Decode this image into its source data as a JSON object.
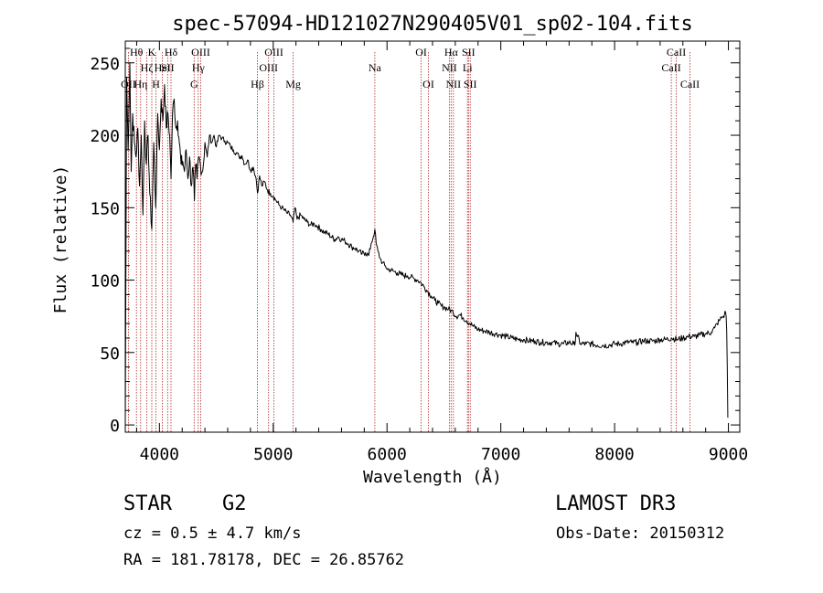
{
  "chart_data": {
    "type": "line",
    "title": "spec-57094-HD121027N290405V01_sp02-104.fits",
    "xlabel": "Wavelength (Å)",
    "ylabel": "Flux (relative)",
    "xlim": [
      3700,
      9100
    ],
    "ylim": [
      -5,
      265
    ],
    "x_ticks": [
      4000,
      5000,
      6000,
      7000,
      8000,
      9000
    ],
    "y_ticks": [
      0,
      50,
      100,
      150,
      200,
      250
    ],
    "x_tick_labels": [
      "4000",
      "5000",
      "6000",
      "7000",
      "8000",
      "9000"
    ],
    "y_tick_labels": [
      "0",
      "50",
      "100",
      "150",
      "200",
      "250"
    ],
    "series": [
      {
        "name": "flux",
        "color": "#000000",
        "x": [
          3700,
          3712,
          3725,
          3740,
          3752,
          3765,
          3780,
          3795,
          3810,
          3825,
          3840,
          3855,
          3870,
          3885,
          3900,
          3915,
          3933,
          3950,
          3968,
          3985,
          4000,
          4015,
          4030,
          4045,
          4060,
          4075,
          4090,
          4102,
          4115,
          4130,
          4145,
          4160,
          4175,
          4190,
          4205,
          4220,
          4235,
          4250,
          4265,
          4280,
          4295,
          4308,
          4318,
          4330,
          4345,
          4360,
          4380,
          4400,
          4420,
          4440,
          4460,
          4480,
          4500,
          4525,
          4550,
          4575,
          4600,
          4625,
          4650,
          4675,
          4700,
          4725,
          4750,
          4775,
          4800,
          4825,
          4850,
          4862,
          4880,
          4900,
          4925,
          4950,
          4975,
          5000,
          5025,
          5050,
          5075,
          5100,
          5125,
          5150,
          5175,
          5190,
          5210,
          5240,
          5270,
          5300,
          5330,
          5360,
          5390,
          5420,
          5450,
          5480,
          5510,
          5540,
          5570,
          5600,
          5630,
          5660,
          5690,
          5720,
          5750,
          5780,
          5810,
          5840,
          5860,
          5880,
          5893,
          5905,
          5920,
          5940,
          5960,
          5980,
          6000,
          6030,
          6060,
          6090,
          6120,
          6150,
          6180,
          6210,
          6240,
          6270,
          6300,
          6330,
          6360,
          6390,
          6420,
          6450,
          6480,
          6510,
          6540,
          6563,
          6580,
          6610,
          6640,
          6670,
          6700,
          6730,
          6760,
          6800,
          6850,
          6900,
          6950,
          7000,
          7050,
          7100,
          7150,
          7200,
          7250,
          7300,
          7350,
          7400,
          7450,
          7500,
          7550,
          7600,
          7640,
          7650,
          7660,
          7700,
          7750,
          7800,
          7850,
          7900,
          7950,
          8000,
          8050,
          8100,
          8150,
          8200,
          8250,
          8300,
          8350,
          8400,
          8450,
          8500,
          8550,
          8600,
          8650,
          8700,
          8750,
          8800,
          8850,
          8880,
          8900,
          8920,
          8940,
          8955,
          8965,
          8975,
          8980,
          8985,
          8990,
          8995
        ],
        "values": [
          0,
          240,
          190,
          250,
          175,
          215,
          195,
          185,
          205,
          165,
          200,
          145,
          210,
          180,
          200,
          160,
          135,
          195,
          150,
          215,
          190,
          225,
          210,
          235,
          205,
          215,
          200,
          170,
          215,
          225,
          205,
          210,
          195,
          180,
          182,
          175,
          190,
          170,
          185,
          165,
          178,
          155,
          180,
          170,
          185,
          180,
          175,
          195,
          185,
          200,
          195,
          200,
          192,
          200,
          198,
          196,
          195,
          192,
          190,
          188,
          185,
          186,
          180,
          183,
          176,
          178,
          170,
          160,
          172,
          165,
          168,
          162,
          160,
          158,
          155,
          152,
          150,
          148,
          146,
          145,
          140,
          150,
          142,
          145,
          142,
          140,
          138,
          139,
          137,
          135,
          133,
          132,
          130,
          128,
          130,
          128,
          127,
          125,
          123,
          122,
          120,
          118,
          119,
          117,
          125,
          130,
          135,
          125,
          120,
          115,
          112,
          110,
          108,
          107,
          106,
          105,
          104,
          103,
          103,
          102,
          101,
          100,
          98,
          95,
          92,
          89,
          86,
          84,
          82,
          81,
          80,
          79,
          78,
          75,
          76,
          74,
          72,
          70,
          68,
          66,
          65,
          64,
          63,
          62,
          61,
          60,
          59,
          59,
          58,
          58,
          57,
          57,
          57,
          56,
          56,
          57,
          56,
          55,
          64,
          56,
          56,
          56,
          55,
          55,
          55,
          56,
          56,
          57,
          57,
          57,
          58,
          58,
          58,
          59,
          59,
          60,
          59,
          60,
          61,
          61,
          62,
          63,
          64,
          67,
          70,
          72,
          74,
          75,
          76,
          78,
          75,
          65,
          40,
          5
        ]
      }
    ],
    "lines": [
      {
        "wl": 3727,
        "label": "OII",
        "row": 3
      },
      {
        "wl": 3798,
        "label": "Hθ",
        "row": 1
      },
      {
        "wl": 3835,
        "label": "Hη",
        "row": 3
      },
      {
        "wl": 3889,
        "label": "Hζ",
        "row": 2
      },
      {
        "wl": 3933,
        "label": "K",
        "row": 1
      },
      {
        "wl": 3970,
        "label": "H",
        "row": 3
      },
      {
        "wl": 4026,
        "label": "HeI",
        "row": 2
      },
      {
        "wl": 4072,
        "label": "SII",
        "row": 2
      },
      {
        "wl": 4102,
        "label": "Hδ",
        "row": 1
      },
      {
        "wl": 4305,
        "label": "G",
        "row": 3
      },
      {
        "wl": 4341,
        "label": "Hγ",
        "row": 2
      },
      {
        "wl": 4363,
        "label": "OIII",
        "row": 1
      },
      {
        "wl": 4861,
        "label": "Hβ",
        "row": 3
      },
      {
        "wl": 4959,
        "label": "OIII",
        "row": 2
      },
      {
        "wl": 5007,
        "label": "OIII",
        "row": 1
      },
      {
        "wl": 5175,
        "label": "Mg",
        "row": 3
      },
      {
        "wl": 5893,
        "label": "Na",
        "row": 2
      },
      {
        "wl": 6300,
        "label": "OI",
        "row": 1
      },
      {
        "wl": 6364,
        "label": "OI",
        "row": 3
      },
      {
        "wl": 6548,
        "label": "NII",
        "row": 2
      },
      {
        "wl": 6563,
        "label": "Hα",
        "row": 1
      },
      {
        "wl": 6583,
        "label": "NII",
        "row": 3
      },
      {
        "wl": 6707,
        "label": "Li",
        "row": 2
      },
      {
        "wl": 6716,
        "label": "SII",
        "row": 1
      },
      {
        "wl": 6731,
        "label": "SII",
        "row": 3
      },
      {
        "wl": 8498,
        "label": "CaII",
        "row": 2
      },
      {
        "wl": 8542,
        "label": "CaII",
        "row": 1
      },
      {
        "wl": 8662,
        "label": "CaII",
        "row": 3
      }
    ]
  },
  "info": {
    "object_class": "STAR",
    "subclass": "G2",
    "survey": "LAMOST DR3",
    "cz": "cz = 0.5 ± 4.7 km/s",
    "obs_date": "Obs-Date: 20150312",
    "coords": "RA = 181.78178, DEC =  26.85762"
  },
  "colors": {
    "line_marker": "#b22222",
    "spectrum": "#000000",
    "axes": "#000000"
  }
}
